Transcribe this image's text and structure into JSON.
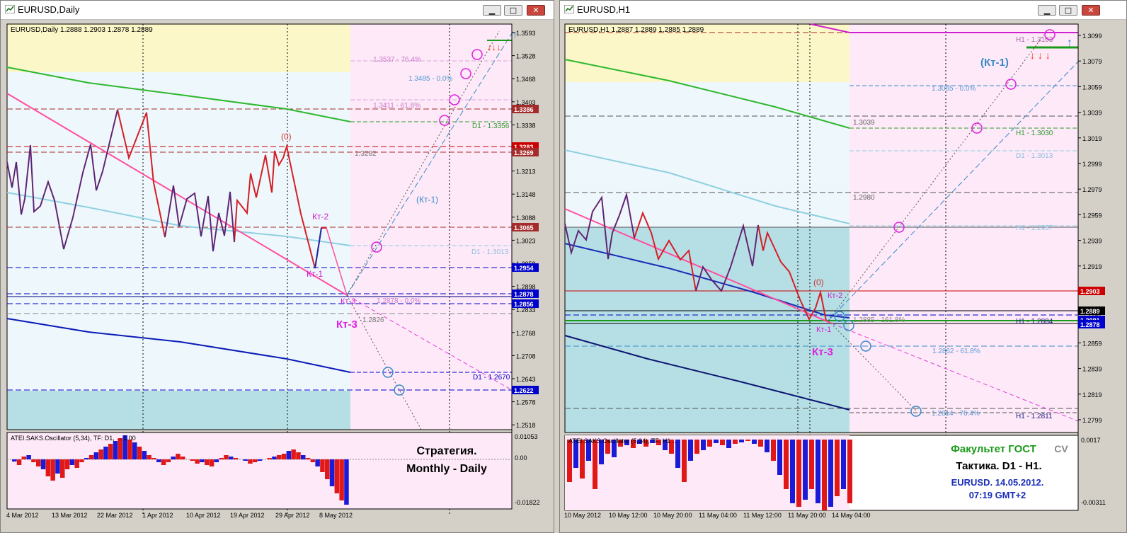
{
  "left": {
    "window_title": "EURUSD,Daily",
    "chart_info": "EURUSD,Daily  1.2888 1.2903 1.2878 1.2889",
    "price_ticks": [
      "1.3593",
      "1.3528",
      "1.3468",
      "1.3403",
      "1.3338",
      "1.3278",
      "1.3213",
      "1.3148",
      "1.3088",
      "1.3023",
      "1.2958",
      "1.2898",
      "1.2833",
      "1.2768",
      "1.2708",
      "1.2643",
      "1.2578",
      "1.2518"
    ],
    "price_badges": [
      {
        "text": "1.3386",
        "color": "#a52a2a"
      },
      {
        "text": "1.3283",
        "color": "#cc0000"
      },
      {
        "text": "1.3269",
        "color": "#a52a2a"
      },
      {
        "text": "1.3065",
        "color": "#a52a2a"
      },
      {
        "text": "1.2954",
        "color": "#0000cc"
      },
      {
        "text": "1.2878",
        "color": "#0000cc"
      },
      {
        "text": "1.2856",
        "color": "#0000cc"
      },
      {
        "text": "1.2622",
        "color": "#0000cc"
      }
    ],
    "chart_labels": {
      "fib_764": "1.3537 - 76.4%",
      "fib_00_top": "1.3485 - 0.0%",
      "fib_618": "1.3411 - 61.8%",
      "d1_1356": "D1 - 1.3356",
      "level_1282": "1.3282",
      "kt2": "Кт-2",
      "kt1": "Кт-1",
      "kt3_small": "Кт-3",
      "kt3_big": "Кт-3",
      "zero": "(0)",
      "kt1_paren": "(Кт-1)",
      "d1_1013": "D1 - 1.3013",
      "fib_00_low": "1.2878 - 0.0%",
      "level_2826": "1.2826",
      "d1_0670": "D1 - 1.2670"
    },
    "oscillator_title": "ATEI.SAKS.Oscillator (5,34), TF: D1, ... 1.00",
    "osc_ticks": [
      "0.01053",
      "0.00",
      "-0.01822"
    ],
    "strategy_title": "Стратегия.",
    "strategy_sub": "Monthly - Daily",
    "time_ticks": [
      "4 Mar 2012",
      "13 Mar 2012",
      "22 Mar 2012",
      "1 Apr 2012",
      "10 Apr 2012",
      "19 Apr 2012",
      "29 Apr 2012",
      "8 May 2012"
    ]
  },
  "right": {
    "window_title": "EURUSD,H1",
    "chart_info": "EURUSD,H1  1.2887 1.2889 1.2885 1.2889",
    "price_ticks": [
      "1.3099",
      "1.3079",
      "1.3059",
      "1.3039",
      "1.3019",
      "1.2999",
      "1.2979",
      "1.2959",
      "1.2939",
      "1.2919",
      "1.2899",
      "1.2879",
      "1.2859",
      "1.2839",
      "1.2819",
      "1.2799"
    ],
    "price_badges": [
      {
        "text": "1.2903",
        "color": "#cc0000"
      },
      {
        "text": "1.2889",
        "color": "#000000"
      },
      {
        "text": "1.2881",
        "color": "#0000cc"
      },
      {
        "text": "1.2878",
        "color": "#0000cc"
      }
    ],
    "chart_labels": {
      "h1_3103": "H1 - 1.3103",
      "kt1_paren": "(Кт-1)",
      "fib_00": "1.3065 - 0.0%",
      "level_3039": "1.3039",
      "h1_3030": "H1 - 1.3030",
      "d1_3013": "D1 - 1.3013",
      "level_2980": "1.2980",
      "h1_2957": "H1 - 1.2957",
      "zero": "(0)",
      "kt2": "Кт-2",
      "fib_1618": "1.2885 - 161.8%",
      "h1_2884": "H1 - 1.2884",
      "kt1": "Кт-1",
      "kt3": "Кт-3",
      "fib_618": "1.2862 - 61.8%",
      "fib_764": "1.2814 - 76.4%",
      "h1_2811": "H1 - 1.2811"
    },
    "oscillator_title": "ATEI.SAKS.Oscillator (5,34), TF: H1 ...",
    "osc_ticks": [
      "0.0017",
      "-0.00311"
    ],
    "banner_faculty": "Факультет ГОСТ",
    "banner_cv": "CV",
    "banner_tactic": "Тактика. D1 - H1.",
    "banner_symbol": "EURUSD. 14.05.2012.",
    "banner_time": "07:19  GMT+2",
    "time_ticks": [
      "10 May 2012",
      "10 May 12:00",
      "10 May 20:00",
      "11 May 04:00",
      "11 May 12:00",
      "11 May 20:00",
      "14 May 04:00"
    ]
  }
}
